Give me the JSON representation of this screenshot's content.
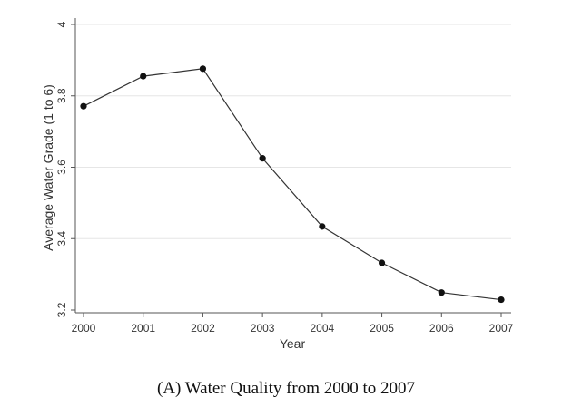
{
  "caption": "(A) Water Quality from 2000 to 2007",
  "chart_data": {
    "type": "line",
    "title": "",
    "xlabel": "Year",
    "ylabel": "Average Water Grade (1 to 6)",
    "categories": [
      "2000",
      "2001",
      "2002",
      "2003",
      "2004",
      "2005",
      "2006",
      "2007"
    ],
    "series": [
      {
        "values": [
          3.771,
          3.855,
          3.876,
          3.625,
          3.434,
          3.332,
          3.249,
          3.229
        ]
      }
    ],
    "ylim": [
      3.2,
      4.0
    ],
    "yticks": [
      "3.2",
      "3.4",
      "3.6",
      "3.8",
      "4"
    ],
    "grid": "horizontal",
    "legend": "none",
    "line_color": "#333333",
    "marker_color": "#111111",
    "grid_color": "#e6e6e6"
  }
}
